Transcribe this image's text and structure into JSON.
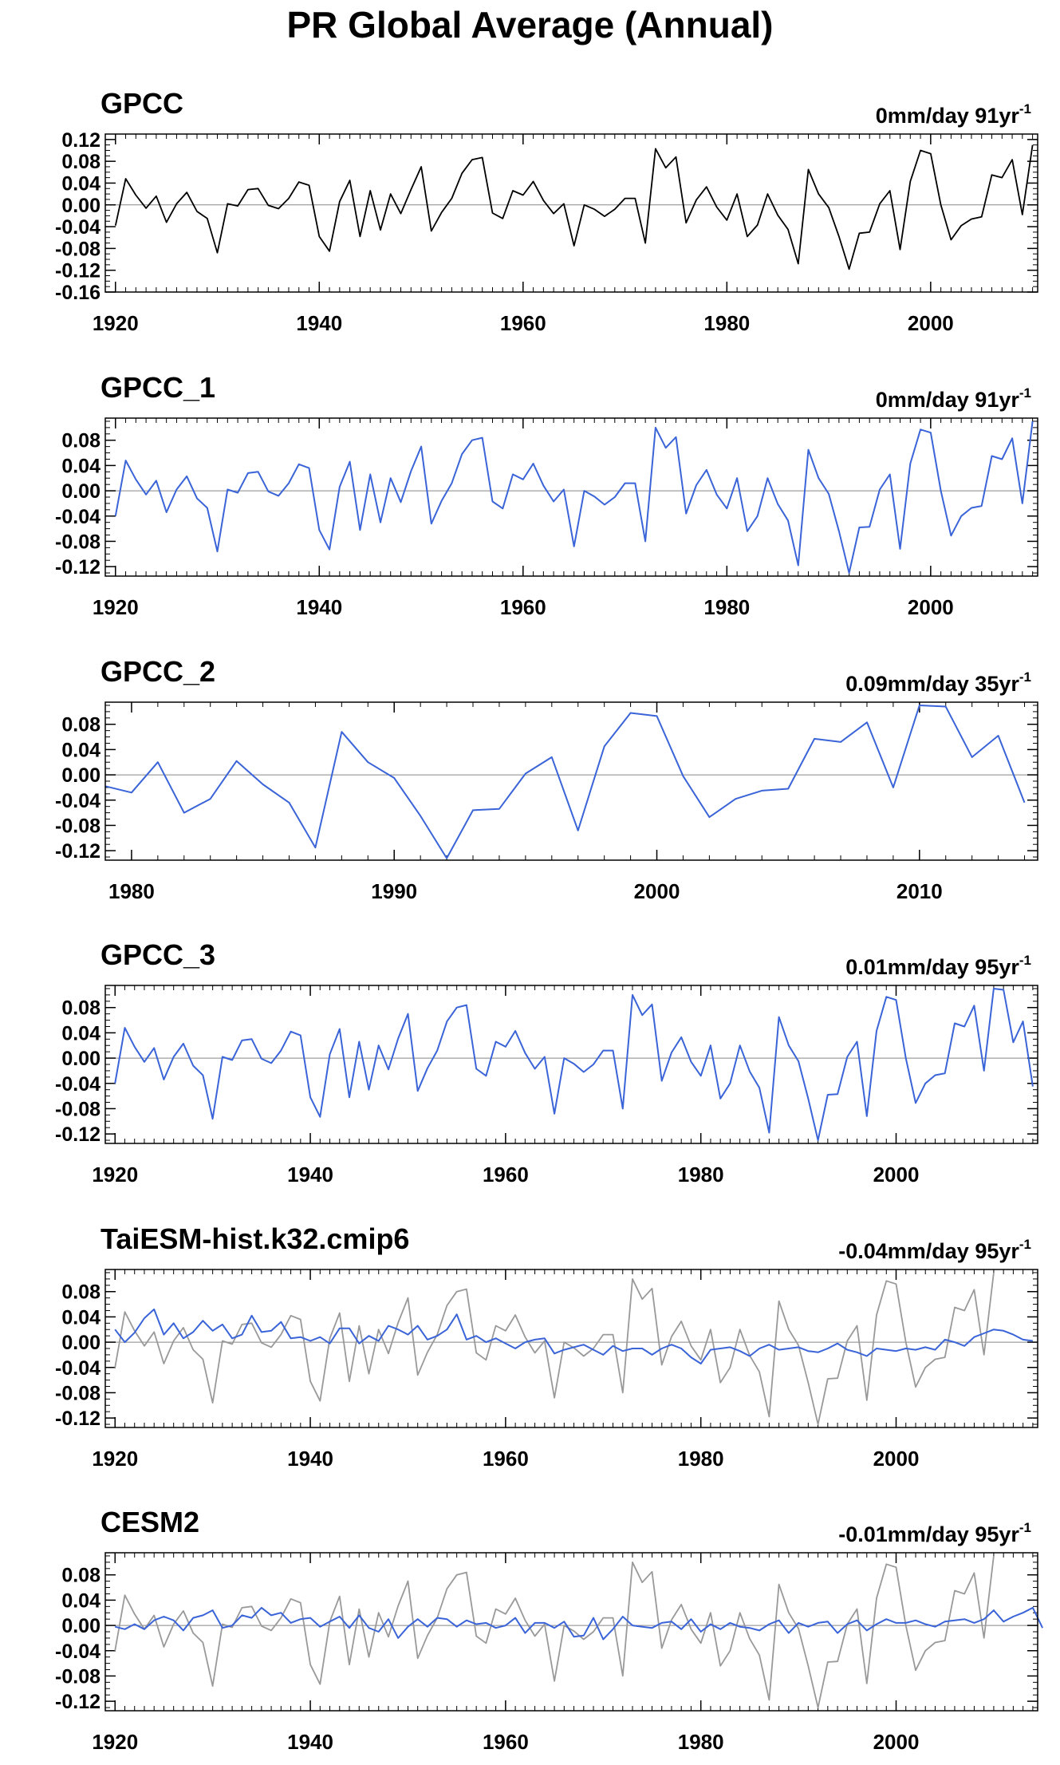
{
  "page_title": "PR Global Average (Annual)",
  "colors": {
    "obs": "#000000",
    "model": "#3a64d8",
    "overlay_obs": "#999999",
    "axis": "#000000",
    "zero_line": "#888888"
  },
  "chart_data": [
    {
      "type": "line",
      "title": "GPCC",
      "trend_label": "0mm/day 91yr",
      "trend_exp": "-1",
      "xlim": [
        1919,
        2010.5
      ],
      "ylim": [
        -0.16,
        0.13
      ],
      "xticks": [
        1920,
        1940,
        1960,
        1980,
        2000
      ],
      "yticks": [
        "0.12",
        "0.08",
        "0.04",
        "0.00",
        "-0.04",
        "-0.08",
        "-0.12",
        "-0.16"
      ],
      "series": [
        {
          "style": "obs",
          "x_start": 1920,
          "values": [
            -0.038,
            0.048,
            0.018,
            -0.006,
            0.016,
            -0.032,
            0.002,
            0.023,
            -0.012,
            -0.025,
            -0.088,
            0.002,
            -0.002,
            0.028,
            0.03,
            -0.001,
            -0.007,
            0.012,
            0.042,
            0.036,
            -0.058,
            -0.085,
            0.006,
            0.045,
            -0.058,
            0.026,
            -0.046,
            0.02,
            -0.016,
            0.028,
            0.07,
            -0.048,
            -0.014,
            0.012,
            0.058,
            0.083,
            0.087,
            -0.015,
            -0.025,
            0.026,
            0.018,
            0.043,
            0.008,
            -0.016,
            0.002,
            -0.075,
            0.0,
            -0.008,
            -0.021,
            -0.008,
            0.012,
            0.012,
            -0.07,
            0.103,
            0.068,
            0.088,
            -0.033,
            0.009,
            0.033,
            -0.004,
            -0.028,
            0.02,
            -0.058,
            -0.037,
            0.02,
            -0.019,
            -0.045,
            -0.108,
            0.065,
            0.02,
            -0.005,
            -0.058,
            -0.118,
            -0.052,
            -0.05,
            0.002,
            0.026,
            -0.082,
            0.043,
            0.1,
            0.094,
            0.0,
            -0.064,
            -0.038,
            -0.026,
            -0.022,
            0.055,
            0.05,
            0.083,
            -0.018,
            0.11
          ]
        }
      ]
    },
    {
      "type": "line",
      "title": "GPCC_1",
      "trend_label": "0mm/day 91yr",
      "trend_exp": "-1",
      "xlim": [
        1919,
        2010.5
      ],
      "ylim": [
        -0.135,
        0.115
      ],
      "xticks": [
        1920,
        1940,
        1960,
        1980,
        2000
      ],
      "yticks": [
        "0.08",
        "0.04",
        "0.00",
        "-0.04",
        "-0.08",
        "-0.12"
      ],
      "series": [
        {
          "style": "model",
          "x_start": 1920,
          "values": [
            -0.04,
            0.048,
            0.018,
            -0.006,
            0.016,
            -0.034,
            0.002,
            0.023,
            -0.012,
            -0.027,
            -0.096,
            0.002,
            -0.003,
            0.028,
            0.03,
            -0.001,
            -0.008,
            0.012,
            0.042,
            0.036,
            -0.062,
            -0.093,
            0.006,
            0.046,
            -0.062,
            0.026,
            -0.05,
            0.02,
            -0.018,
            0.031,
            0.07,
            -0.052,
            -0.016,
            0.012,
            0.058,
            0.08,
            0.084,
            -0.017,
            -0.028,
            0.026,
            0.018,
            0.043,
            0.008,
            -0.017,
            0.002,
            -0.088,
            0.0,
            -0.009,
            -0.022,
            -0.01,
            0.012,
            0.012,
            -0.08,
            0.1,
            0.068,
            0.085,
            -0.036,
            0.009,
            0.033,
            -0.006,
            -0.028,
            0.02,
            -0.064,
            -0.04,
            0.02,
            -0.021,
            -0.047,
            -0.118,
            0.065,
            0.02,
            -0.005,
            -0.064,
            -0.13,
            -0.058,
            -0.057,
            0.002,
            0.026,
            -0.092,
            0.043,
            0.097,
            0.092,
            0.0,
            -0.071,
            -0.04,
            -0.027,
            -0.024,
            0.055,
            0.05,
            0.083,
            -0.02,
            0.11
          ]
        }
      ]
    },
    {
      "type": "line",
      "title": "GPCC_2",
      "trend_label": "0.09mm/day 35yr",
      "trend_exp": "-1",
      "xlim": [
        1979,
        2014.5
      ],
      "ylim": [
        -0.135,
        0.115
      ],
      "xticks": [
        1980,
        1990,
        2000,
        2010
      ],
      "yticks": [
        "0.08",
        "0.04",
        "0.00",
        "-0.04",
        "-0.08",
        "-0.12"
      ],
      "series": [
        {
          "style": "model",
          "x_start": 1979,
          "values": [
            -0.018,
            -0.028,
            0.02,
            -0.06,
            -0.038,
            0.022,
            -0.015,
            -0.044,
            -0.115,
            0.068,
            0.02,
            -0.005,
            -0.065,
            -0.132,
            -0.056,
            -0.054,
            0.002,
            0.028,
            -0.088,
            0.045,
            0.098,
            0.093,
            -0.002,
            -0.067,
            -0.038,
            -0.025,
            -0.022,
            0.057,
            0.052,
            0.083,
            -0.02,
            0.11,
            0.108,
            0.028,
            0.062,
            -0.044
          ]
        }
      ]
    },
    {
      "type": "line",
      "title": "GPCC_3",
      "trend_label": "0.01mm/day 95yr",
      "trend_exp": "-1",
      "xlim": [
        1919,
        2014.5
      ],
      "ylim": [
        -0.135,
        0.115
      ],
      "xticks": [
        1920,
        1940,
        1960,
        1980,
        2000
      ],
      "yticks": [
        "0.08",
        "0.04",
        "0.00",
        "-0.04",
        "-0.08",
        "-0.12"
      ],
      "series": [
        {
          "style": "model",
          "x_start": 1920,
          "values": [
            -0.04,
            0.048,
            0.018,
            -0.006,
            0.016,
            -0.034,
            0.002,
            0.023,
            -0.012,
            -0.027,
            -0.096,
            0.002,
            -0.003,
            0.028,
            0.03,
            -0.001,
            -0.008,
            0.012,
            0.042,
            0.036,
            -0.062,
            -0.093,
            0.006,
            0.046,
            -0.062,
            0.026,
            -0.05,
            0.02,
            -0.018,
            0.031,
            0.07,
            -0.052,
            -0.016,
            0.012,
            0.058,
            0.08,
            0.084,
            -0.017,
            -0.028,
            0.026,
            0.018,
            0.043,
            0.008,
            -0.017,
            0.002,
            -0.088,
            0.0,
            -0.009,
            -0.022,
            -0.01,
            0.012,
            0.012,
            -0.08,
            0.1,
            0.068,
            0.085,
            -0.036,
            0.009,
            0.033,
            -0.006,
            -0.028,
            0.02,
            -0.064,
            -0.04,
            0.02,
            -0.021,
            -0.047,
            -0.118,
            0.065,
            0.02,
            -0.005,
            -0.064,
            -0.13,
            -0.058,
            -0.057,
            0.002,
            0.026,
            -0.092,
            0.043,
            0.097,
            0.092,
            0.0,
            -0.071,
            -0.04,
            -0.027,
            -0.024,
            0.055,
            0.05,
            0.083,
            -0.02,
            0.11,
            0.108,
            0.025,
            0.058,
            -0.045
          ]
        }
      ]
    },
    {
      "type": "line",
      "title": "TaiESM-hist.k32.cmip6",
      "trend_label": "-0.04mm/day 95yr",
      "trend_exp": "-1",
      "xlim": [
        1919,
        2014.5
      ],
      "ylim": [
        -0.135,
        0.115
      ],
      "xticks": [
        1920,
        1940,
        1960,
        1980,
        2000
      ],
      "yticks": [
        "0.08",
        "0.04",
        "0.00",
        "-0.04",
        "-0.08",
        "-0.12"
      ],
      "series": [
        {
          "style": "overlay_obs",
          "x_start": 1920,
          "values": [
            -0.04,
            0.048,
            0.018,
            -0.006,
            0.016,
            -0.034,
            0.002,
            0.023,
            -0.012,
            -0.027,
            -0.096,
            0.002,
            -0.003,
            0.028,
            0.03,
            -0.001,
            -0.008,
            0.012,
            0.042,
            0.036,
            -0.062,
            -0.093,
            0.006,
            0.046,
            -0.062,
            0.026,
            -0.05,
            0.02,
            -0.018,
            0.031,
            0.07,
            -0.052,
            -0.016,
            0.012,
            0.058,
            0.08,
            0.084,
            -0.017,
            -0.028,
            0.026,
            0.018,
            0.043,
            0.008,
            -0.017,
            0.002,
            -0.088,
            0.0,
            -0.009,
            -0.022,
            -0.01,
            0.012,
            0.012,
            -0.08,
            0.1,
            0.068,
            0.085,
            -0.036,
            0.009,
            0.033,
            -0.006,
            -0.028,
            0.02,
            -0.064,
            -0.04,
            0.02,
            -0.021,
            -0.047,
            -0.118,
            0.065,
            0.02,
            -0.005,
            -0.064,
            -0.13,
            -0.058,
            -0.057,
            0.002,
            0.026,
            -0.092,
            0.043,
            0.097,
            0.092,
            0.0,
            -0.071,
            -0.04,
            -0.027,
            -0.024,
            0.055,
            0.05,
            0.083,
            -0.02,
            0.11
          ]
        },
        {
          "style": "model",
          "x_start": 1920,
          "values": [
            0.02,
            0.0,
            0.015,
            0.038,
            0.052,
            0.012,
            0.03,
            0.006,
            0.016,
            0.034,
            0.018,
            0.028,
            0.006,
            0.012,
            0.042,
            0.016,
            0.018,
            0.032,
            0.006,
            0.008,
            0.002,
            0.008,
            -0.002,
            0.022,
            0.022,
            -0.002,
            0.01,
            0.002,
            0.026,
            0.02,
            0.012,
            0.026,
            0.004,
            0.01,
            0.02,
            0.044,
            0.004,
            0.01,
            0.0,
            0.006,
            -0.002,
            -0.01,
            0.0,
            0.004,
            0.006,
            -0.018,
            -0.012,
            -0.008,
            -0.004,
            -0.012,
            -0.02,
            -0.006,
            -0.014,
            -0.01,
            -0.01,
            -0.02,
            -0.01,
            -0.004,
            -0.01,
            -0.024,
            -0.034,
            -0.012,
            -0.01,
            -0.008,
            -0.014,
            -0.022,
            -0.01,
            -0.004,
            -0.012,
            -0.01,
            -0.008,
            -0.014,
            -0.016,
            -0.01,
            -0.002,
            -0.012,
            -0.016,
            -0.022,
            -0.01,
            -0.012,
            -0.014,
            -0.01,
            -0.012,
            -0.008,
            -0.012,
            0.004,
            0.0,
            -0.006,
            0.008,
            0.014,
            0.02,
            0.018,
            0.012,
            0.004,
            0.002
          ]
        }
      ]
    },
    {
      "type": "line",
      "title": "CESM2",
      "trend_label": "-0.01mm/day 95yr",
      "trend_exp": "-1",
      "xlim": [
        1919,
        2014.5
      ],
      "ylim": [
        -0.135,
        0.115
      ],
      "xticks": [
        1920,
        1940,
        1960,
        1980,
        2000
      ],
      "yticks": [
        "0.08",
        "0.04",
        "0.00",
        "-0.04",
        "-0.08",
        "-0.12"
      ],
      "series": [
        {
          "style": "overlay_obs",
          "x_start": 1920,
          "values": [
            -0.04,
            0.048,
            0.018,
            -0.006,
            0.016,
            -0.034,
            0.002,
            0.023,
            -0.012,
            -0.027,
            -0.096,
            0.002,
            -0.003,
            0.028,
            0.03,
            -0.001,
            -0.008,
            0.012,
            0.042,
            0.036,
            -0.062,
            -0.093,
            0.006,
            0.046,
            -0.062,
            0.026,
            -0.05,
            0.02,
            -0.018,
            0.031,
            0.07,
            -0.052,
            -0.016,
            0.012,
            0.058,
            0.08,
            0.084,
            -0.017,
            -0.028,
            0.026,
            0.018,
            0.043,
            0.008,
            -0.017,
            0.002,
            -0.088,
            0.0,
            -0.009,
            -0.022,
            -0.01,
            0.012,
            0.012,
            -0.08,
            0.1,
            0.068,
            0.085,
            -0.036,
            0.009,
            0.033,
            -0.006,
            -0.028,
            0.02,
            -0.064,
            -0.04,
            0.02,
            -0.021,
            -0.047,
            -0.118,
            0.065,
            0.02,
            -0.005,
            -0.064,
            -0.13,
            -0.058,
            -0.057,
            0.002,
            0.026,
            -0.092,
            0.043,
            0.097,
            0.092,
            0.0,
            -0.071,
            -0.04,
            -0.027,
            -0.024,
            0.055,
            0.05,
            0.083,
            -0.02,
            0.11
          ]
        },
        {
          "style": "model",
          "x_start": 1920,
          "values": [
            -0.002,
            -0.006,
            0.002,
            -0.006,
            0.008,
            0.014,
            0.008,
            -0.008,
            0.012,
            0.016,
            0.024,
            -0.004,
            0.0,
            0.016,
            0.012,
            0.028,
            0.016,
            0.02,
            0.004,
            0.01,
            0.012,
            -0.002,
            0.006,
            0.014,
            -0.004,
            0.016,
            -0.004,
            -0.01,
            0.01,
            -0.02,
            -0.002,
            0.01,
            -0.002,
            0.012,
            0.01,
            -0.002,
            0.008,
            0.002,
            0.004,
            -0.004,
            0.0,
            0.012,
            -0.012,
            0.004,
            0.004,
            -0.004,
            0.006,
            -0.018,
            -0.016,
            0.012,
            -0.022,
            -0.006,
            0.014,
            0.0,
            -0.002,
            -0.004,
            0.004,
            0.006,
            -0.006,
            0.01,
            -0.01,
            0.002,
            -0.006,
            0.004,
            -0.002,
            -0.004,
            -0.008,
            0.002,
            0.008,
            -0.012,
            0.004,
            -0.002,
            0.004,
            0.006,
            -0.012,
            0.002,
            0.008,
            -0.008,
            0.002,
            0.01,
            0.004,
            0.004,
            0.008,
            0.002,
            -0.002,
            0.006,
            0.008,
            0.01,
            0.004,
            0.01,
            0.024,
            0.006,
            0.014,
            0.02,
            0.028,
            -0.004
          ]
        }
      ]
    }
  ]
}
